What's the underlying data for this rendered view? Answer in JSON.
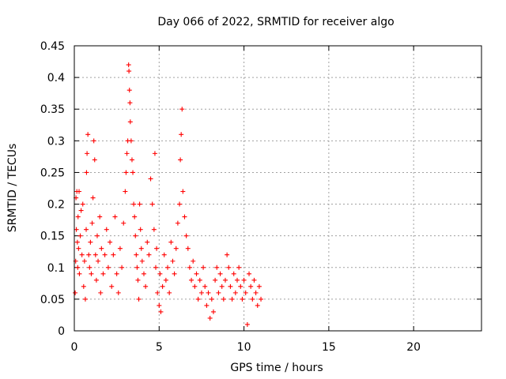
{
  "chart_data": {
    "type": "scatter",
    "title": "Day 066 of 2022, SRMTID for receiver algo",
    "xlabel": "GPS time / hours",
    "ylabel": "SRMTID / TECUs",
    "xlim": [
      0,
      24
    ],
    "ylim": [
      0,
      0.45
    ],
    "xticks": [
      0,
      5,
      10,
      15,
      20
    ],
    "xtick_labels": [
      "0",
      "5",
      "10",
      "15",
      "20"
    ],
    "yticks": [
      0,
      0.05,
      0.1,
      0.15,
      0.2,
      0.25,
      0.3,
      0.35,
      0.4,
      0.45
    ],
    "ytick_labels": [
      "0",
      "0.05",
      "0.1",
      "0.15",
      "0.2",
      "0.25",
      "0.3",
      "0.35",
      "0.4",
      "0.45"
    ],
    "grid": true,
    "marker": "+",
    "color": "#ff0000",
    "series": [
      {
        "name": "algo",
        "points": [
          [
            0.05,
            0.06
          ],
          [
            0.08,
            0.11
          ],
          [
            0.1,
            0.21
          ],
          [
            0.12,
            0.16
          ],
          [
            0.15,
            0.22
          ],
          [
            0.18,
            0.14
          ],
          [
            0.2,
            0.1
          ],
          [
            0.22,
            0.18
          ],
          [
            0.25,
            0.13
          ],
          [
            0.28,
            0.22
          ],
          [
            0.3,
            0.09
          ],
          [
            0.35,
            0.15
          ],
          [
            0.4,
            0.19
          ],
          [
            0.45,
            0.12
          ],
          [
            0.5,
            0.2
          ],
          [
            0.55,
            0.07
          ],
          [
            0.6,
            0.11
          ],
          [
            0.65,
            0.05
          ],
          [
            0.7,
            0.16
          ],
          [
            0.72,
            0.25
          ],
          [
            0.75,
            0.28
          ],
          [
            0.8,
            0.31
          ],
          [
            0.85,
            0.12
          ],
          [
            0.9,
            0.1
          ],
          [
            0.95,
            0.14
          ],
          [
            1.0,
            0.09
          ],
          [
            1.05,
            0.17
          ],
          [
            1.1,
            0.21
          ],
          [
            1.15,
            0.3
          ],
          [
            1.2,
            0.27
          ],
          [
            1.25,
            0.12
          ],
          [
            1.3,
            0.08
          ],
          [
            1.35,
            0.15
          ],
          [
            1.4,
            0.11
          ],
          [
            1.5,
            0.18
          ],
          [
            1.55,
            0.06
          ],
          [
            1.6,
            0.13
          ],
          [
            1.7,
            0.09
          ],
          [
            1.8,
            0.12
          ],
          [
            1.9,
            0.16
          ],
          [
            2.0,
            0.1
          ],
          [
            2.1,
            0.14
          ],
          [
            2.2,
            0.07
          ],
          [
            2.3,
            0.12
          ],
          [
            2.4,
            0.18
          ],
          [
            2.5,
            0.09
          ],
          [
            2.6,
            0.06
          ],
          [
            2.7,
            0.13
          ],
          [
            2.8,
            0.1
          ],
          [
            2.9,
            0.17
          ],
          [
            3.0,
            0.22
          ],
          [
            3.05,
            0.25
          ],
          [
            3.1,
            0.28
          ],
          [
            3.15,
            0.3
          ],
          [
            3.2,
            0.42
          ],
          [
            3.22,
            0.41
          ],
          [
            3.25,
            0.38
          ],
          [
            3.28,
            0.36
          ],
          [
            3.3,
            0.33
          ],
          [
            3.35,
            0.3
          ],
          [
            3.4,
            0.27
          ],
          [
            3.45,
            0.25
          ],
          [
            3.5,
            0.2
          ],
          [
            3.55,
            0.18
          ],
          [
            3.6,
            0.15
          ],
          [
            3.65,
            0.12
          ],
          [
            3.7,
            0.1
          ],
          [
            3.75,
            0.08
          ],
          [
            3.8,
            0.05
          ],
          [
            3.85,
            0.2
          ],
          [
            3.9,
            0.16
          ],
          [
            3.95,
            0.13
          ],
          [
            4.0,
            0.11
          ],
          [
            4.1,
            0.09
          ],
          [
            4.2,
            0.07
          ],
          [
            4.3,
            0.14
          ],
          [
            4.4,
            0.12
          ],
          [
            4.5,
            0.24
          ],
          [
            4.6,
            0.2
          ],
          [
            4.7,
            0.16
          ],
          [
            4.75,
            0.28
          ],
          [
            4.8,
            0.1
          ],
          [
            4.85,
            0.13
          ],
          [
            4.9,
            0.06
          ],
          [
            5.0,
            0.04
          ],
          [
            5.05,
            0.09
          ],
          [
            5.1,
            0.03
          ],
          [
            5.2,
            0.07
          ],
          [
            5.3,
            0.12
          ],
          [
            5.4,
            0.08
          ],
          [
            5.5,
            0.1
          ],
          [
            5.6,
            0.06
          ],
          [
            5.7,
            0.14
          ],
          [
            5.8,
            0.11
          ],
          [
            5.9,
            0.09
          ],
          [
            6.0,
            0.13
          ],
          [
            6.1,
            0.17
          ],
          [
            6.2,
            0.2
          ],
          [
            6.25,
            0.27
          ],
          [
            6.3,
            0.31
          ],
          [
            6.35,
            0.35
          ],
          [
            6.4,
            0.22
          ],
          [
            6.5,
            0.18
          ],
          [
            6.6,
            0.15
          ],
          [
            6.7,
            0.13
          ],
          [
            6.8,
            0.1
          ],
          [
            6.9,
            0.08
          ],
          [
            7.0,
            0.11
          ],
          [
            7.1,
            0.07
          ],
          [
            7.2,
            0.09
          ],
          [
            7.3,
            0.05
          ],
          [
            7.4,
            0.08
          ],
          [
            7.5,
            0.06
          ],
          [
            7.6,
            0.1
          ],
          [
            7.7,
            0.07
          ],
          [
            7.8,
            0.04
          ],
          [
            7.9,
            0.06
          ],
          [
            8.0,
            0.02
          ],
          [
            8.1,
            0.05
          ],
          [
            8.2,
            0.03
          ],
          [
            8.3,
            0.08
          ],
          [
            8.4,
            0.1
          ],
          [
            8.5,
            0.06
          ],
          [
            8.6,
            0.09
          ],
          [
            8.7,
            0.07
          ],
          [
            8.8,
            0.05
          ],
          [
            8.9,
            0.08
          ],
          [
            9.0,
            0.12
          ],
          [
            9.1,
            0.1
          ],
          [
            9.2,
            0.07
          ],
          [
            9.3,
            0.05
          ],
          [
            9.4,
            0.09
          ],
          [
            9.5,
            0.06
          ],
          [
            9.6,
            0.08
          ],
          [
            9.7,
            0.1
          ],
          [
            9.8,
            0.07
          ],
          [
            9.9,
            0.05
          ],
          [
            10.0,
            0.08
          ],
          [
            10.1,
            0.06
          ],
          [
            10.2,
            0.01
          ],
          [
            10.3,
            0.09
          ],
          [
            10.4,
            0.07
          ],
          [
            10.5,
            0.05
          ],
          [
            10.6,
            0.08
          ],
          [
            10.7,
            0.06
          ],
          [
            10.8,
            0.04
          ],
          [
            10.9,
            0.07
          ],
          [
            11.0,
            0.05
          ]
        ]
      }
    ]
  }
}
